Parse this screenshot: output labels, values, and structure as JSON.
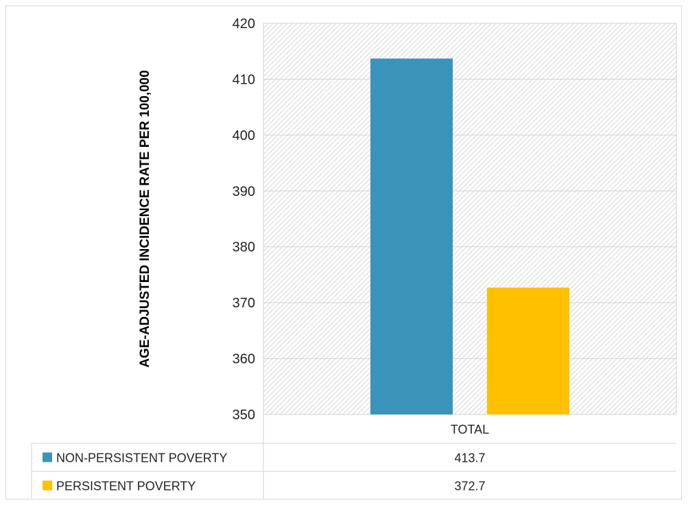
{
  "chart_data": {
    "type": "bar",
    "categories": [
      "TOTAL"
    ],
    "series": [
      {
        "name": "NON-PERSISTENT POVERTY",
        "values": [
          413.7
        ],
        "color": "#3a93b9",
        "label": "413.7"
      },
      {
        "name": "PERSISTENT POVERTY",
        "values": [
          372.7
        ],
        "color": "#ffc000",
        "label": "372.7"
      }
    ],
    "ylabel": "AGE-ADJUSTED INCIDENCE RATE PER 100,000",
    "ylim": [
      350,
      420
    ],
    "yticks": [
      350,
      360,
      370,
      380,
      390,
      400,
      410,
      420
    ],
    "grid": true,
    "legend": "data-table-below"
  }
}
